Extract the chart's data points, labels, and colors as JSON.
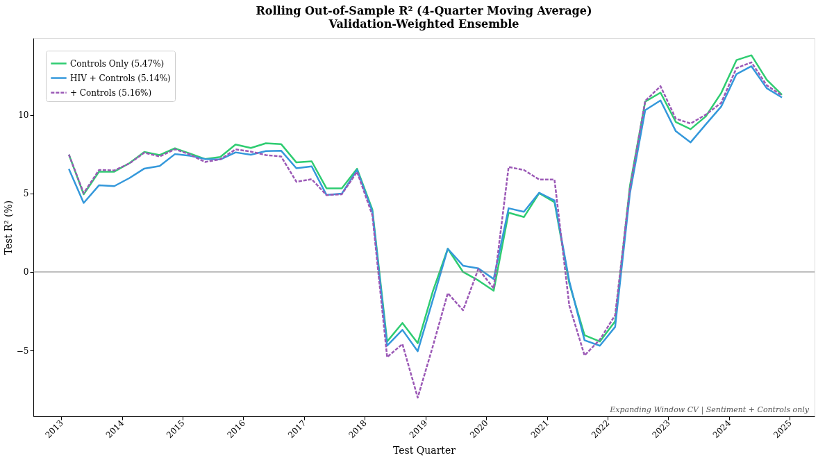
{
  "chart_data": {
    "type": "line",
    "title": "Rolling Out-of-Sample R² (4-Quarter Moving Average)",
    "subtitle": "Validation-Weighted Ensemble",
    "xlabel": "Test Quarter",
    "ylabel": "Test R² (%)",
    "x": [
      "2013-02-15",
      "2013-05-15",
      "2013-08-15",
      "2013-11-15",
      "2014-02-15",
      "2014-05-15",
      "2014-08-15",
      "2014-11-15",
      "2015-02-15",
      "2015-05-15",
      "2015-08-15",
      "2015-11-15",
      "2016-02-15",
      "2016-05-15",
      "2016-08-15",
      "2016-11-15",
      "2017-02-15",
      "2017-05-15",
      "2017-08-15",
      "2017-11-15",
      "2018-02-15",
      "2018-05-15",
      "2018-08-15",
      "2018-11-15",
      "2019-02-15",
      "2019-05-15",
      "2019-08-15",
      "2019-11-15",
      "2020-02-15",
      "2020-05-15",
      "2020-08-15",
      "2020-11-15",
      "2021-02-15",
      "2021-05-15",
      "2021-08-15",
      "2021-11-15",
      "2022-02-15",
      "2022-05-15",
      "2022-08-15",
      "2022-11-15",
      "2023-02-15",
      "2023-05-15",
      "2023-08-15",
      "2023-11-15",
      "2024-02-15",
      "2024-05-15",
      "2024-08-15",
      "2024-11-15"
    ],
    "series": [
      {
        "name": "Controls Only (5.47%)",
        "color": "#2ecc71",
        "line_style": "solid",
        "values": [
          7.48,
          4.95,
          6.39,
          6.39,
          6.94,
          7.65,
          7.45,
          7.88,
          7.54,
          7.2,
          7.33,
          8.12,
          7.9,
          8.2,
          8.15,
          6.98,
          7.05,
          5.33,
          5.33,
          6.58,
          3.98,
          -4.43,
          -3.25,
          -4.54,
          -1.2,
          1.48,
          0.0,
          -0.54,
          -1.2,
          3.78,
          3.5,
          5.02,
          4.45,
          -0.73,
          -4.03,
          -4.43,
          -3.14,
          5.49,
          10.86,
          11.43,
          9.56,
          9.1,
          9.92,
          11.4,
          13.5,
          13.81,
          12.25,
          11.29
        ]
      },
      {
        "name": "HIV + Controls (5.14%)",
        "color": "#3498db",
        "line_style": "solid",
        "values": [
          6.56,
          4.4,
          5.52,
          5.47,
          5.99,
          6.59,
          6.75,
          7.51,
          7.4,
          7.2,
          7.17,
          7.62,
          7.47,
          7.7,
          7.73,
          6.61,
          6.73,
          4.91,
          4.99,
          6.5,
          3.86,
          -4.7,
          -3.69,
          -5.05,
          -1.74,
          1.48,
          0.4,
          0.23,
          -0.45,
          4.06,
          3.83,
          5.05,
          4.56,
          -0.58,
          -4.35,
          -4.7,
          -3.5,
          5.02,
          10.31,
          10.93,
          8.97,
          8.26,
          9.41,
          10.54,
          12.61,
          13.11,
          11.71,
          11.12
        ]
      },
      {
        "name": "+ Controls (5.16%)",
        "color": "#9b59b6",
        "line_style": "dashed",
        "values": [
          7.48,
          5.02,
          6.5,
          6.47,
          6.92,
          7.6,
          7.36,
          7.82,
          7.48,
          7.01,
          7.18,
          7.81,
          7.67,
          7.45,
          7.36,
          5.75,
          5.91,
          4.9,
          4.95,
          6.38,
          3.62,
          -5.43,
          -4.59,
          -8.01,
          -4.7,
          -1.35,
          -2.44,
          0.2,
          -1.04,
          6.69,
          6.5,
          5.89,
          5.89,
          -2.13,
          -5.32,
          -4.31,
          -2.75,
          5.33,
          10.9,
          11.84,
          9.77,
          9.46,
          10.03,
          10.78,
          12.99,
          13.36,
          11.9,
          11.24
        ]
      }
    ],
    "xlim": [
      "2012-07-16",
      "2025-05-30"
    ],
    "xticks": [
      "2013",
      "2014",
      "2015",
      "2016",
      "2017",
      "2018",
      "2019",
      "2020",
      "2021",
      "2022",
      "2023",
      "2024",
      "2025"
    ],
    "ylim": [
      -9.2,
      14.9
    ],
    "yticks": [
      -5,
      0,
      5,
      10
    ],
    "ref_lines": [
      {
        "axis": "y",
        "value": 0,
        "color": "#808080"
      }
    ],
    "annotations": [
      "Expanding Window CV | Sentiment + Controls only"
    ],
    "grid": false,
    "legend": "top left",
    "marker": "none"
  }
}
